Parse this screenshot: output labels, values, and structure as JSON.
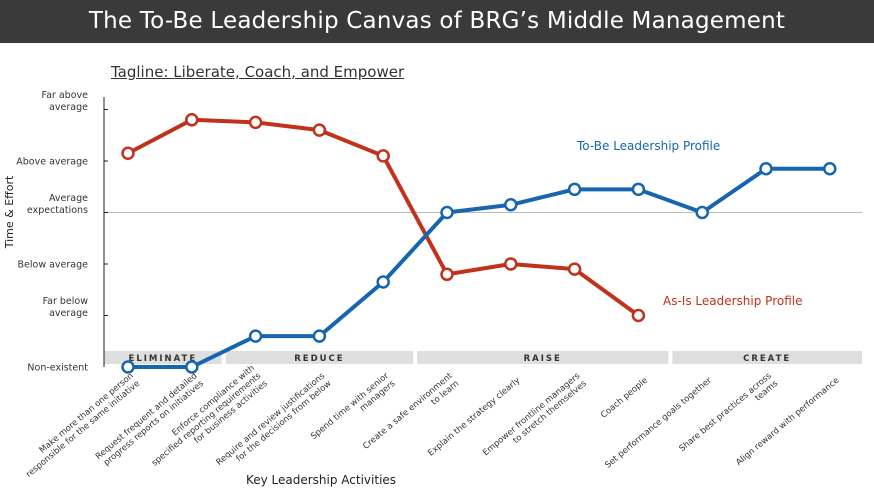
{
  "header": {
    "title": "The To-Be Leadership Canvas of BRG’s Middle Management"
  },
  "tagline": "Tagline: Liberate, Coach, and Empower",
  "chart_data": {
    "type": "line",
    "xlabel": "Key Leadership Activities",
    "ylabel": "Time & Effort",
    "y_levels": [
      {
        "value": 0,
        "label": [
          "Non-existent"
        ]
      },
      {
        "value": 1,
        "label": [
          "Far below",
          "average"
        ]
      },
      {
        "value": 2,
        "label": [
          "Below average"
        ]
      },
      {
        "value": 3,
        "label": [
          "Average",
          "expectations"
        ]
      },
      {
        "value": 4,
        "label": [
          "Above average"
        ]
      },
      {
        "value": 5,
        "label": [
          "Far above",
          "average"
        ]
      }
    ],
    "ylim": [
      0,
      5
    ],
    "categories": [
      [
        "Make more than one person",
        "responsible for the same initiative"
      ],
      [
        "Request frequent and detailed",
        "progress reports on initiatives"
      ],
      [
        "Enforce compliance with",
        "specified reporting requirements",
        "for business activities"
      ],
      [
        "Require and review justifications",
        "for the decisions from below"
      ],
      [
        "Spend time with senior",
        "managers"
      ],
      [
        "Create a safe environment",
        "to learn"
      ],
      [
        "Explain the strategy clearly"
      ],
      [
        "Empower frontline managers",
        "to stretch themselves"
      ],
      [
        "Coach people"
      ],
      [
        "Set performance goals together"
      ],
      [
        "Share best practices across",
        "teams"
      ],
      [
        "Align reward with performance"
      ]
    ],
    "groups": [
      {
        "label": "ELIMINATE",
        "from": 0,
        "to": 1
      },
      {
        "label": "REDUCE",
        "from": 2,
        "to": 4
      },
      {
        "label": "RAISE",
        "from": 5,
        "to": 8
      },
      {
        "label": "CREATE",
        "from": 9,
        "to": 11
      }
    ],
    "series": [
      {
        "name": "As-Is Leadership Profile",
        "color": "#c0321b",
        "values": [
          4.15,
          4.8,
          4.75,
          4.6,
          4.1,
          1.8,
          2.0,
          1.9,
          1.0,
          null,
          null,
          null
        ]
      },
      {
        "name": "To-Be Leadership Profile",
        "color": "#1565b0",
        "values": [
          0,
          0,
          0.6,
          0.6,
          1.65,
          3.0,
          3.15,
          3.45,
          3.45,
          3.0,
          3.85,
          3.85
        ]
      }
    ]
  }
}
